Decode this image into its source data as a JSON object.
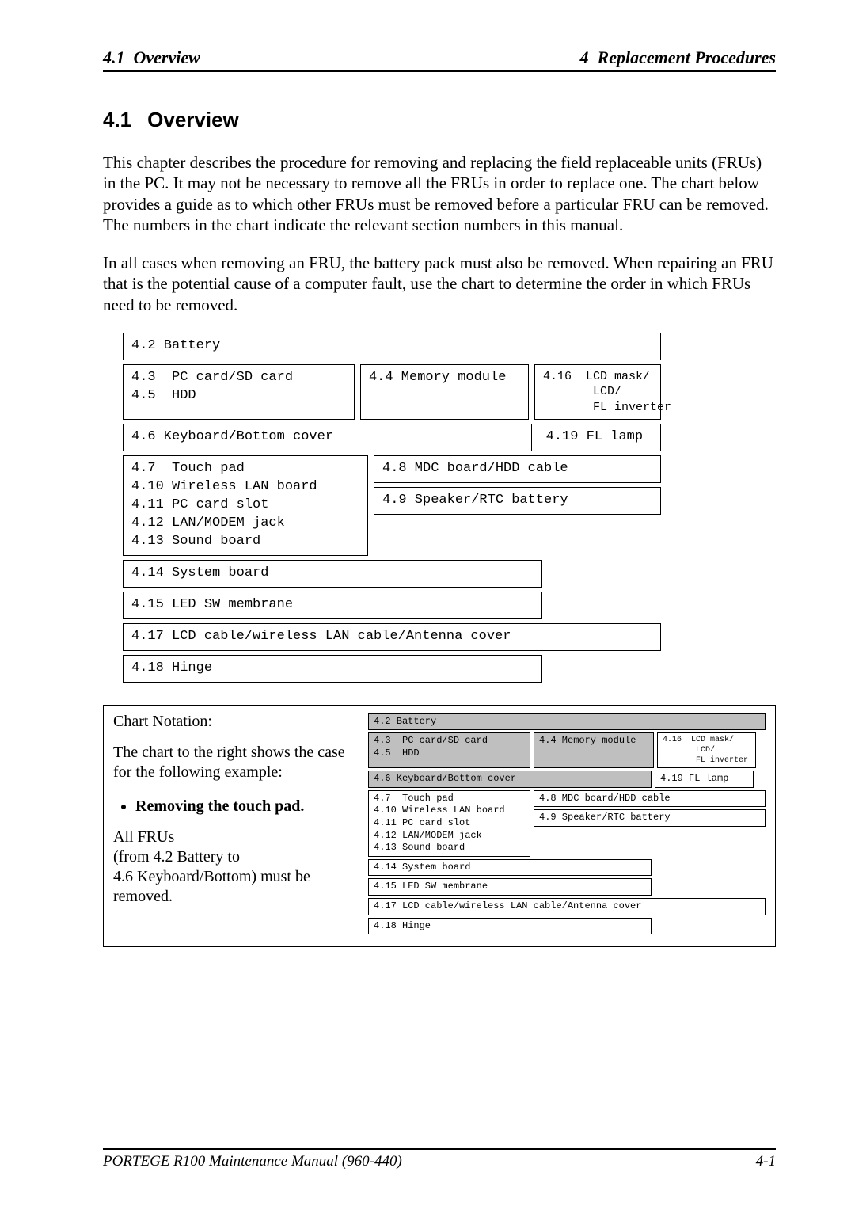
{
  "header": {
    "left_num": "4.1",
    "left_title": "Overview",
    "right_num": "4",
    "right_title": "Replacement Procedures"
  },
  "section": {
    "number": "4.1",
    "title": "Overview"
  },
  "para1": "This chapter describes the procedure for removing and replacing the field replaceable units (FRUs) in the PC. It may not be necessary to remove all the FRUs in order to replace one.  The chart below provides a guide as to which other FRUs must be removed before a particular FRU can be removed. The numbers in the chart indicate the relevant section numbers in this manual.",
  "para2": "In all cases when removing an FRU, the battery pack must also be removed. When repairing an FRU that is the potential cause of a computer fault, use the chart to determine the order in which FRUs need to be removed.",
  "chart": {
    "r1": "4.2  Battery",
    "r2a": "4.3  PC card/SD card\n4.5  HDD",
    "r2b": "4.4 Memory module",
    "r2c": "4.16  LCD mask/\n       LCD/\n       FL inverter",
    "r3a": "4.6  Keyboard/Bottom cover",
    "r3b": "4.19  FL lamp",
    "r4a": "4.7  Touch pad\n4.10 Wireless LAN board\n4.11 PC card slot\n4.12 LAN/MODEM jack\n4.13 Sound board",
    "r4b1": "4.8 MDC board/HDD cable",
    "r4b2": "4.9 Speaker/RTC battery",
    "r5": "4.14 System board",
    "r6": "4.15 LED SW membrane",
    "r7": "4.17 LCD cable/wireless LAN cable/Antenna cover",
    "r8": "4.18 Hinge"
  },
  "notation": {
    "title": "Chart Notation:",
    "para1": "The chart to the right shows the case for the following example:",
    "bullet": "Removing the touch pad.",
    "para2": "All FRUs\n(from 4.2 Battery to\n4.6 Keyboard/Bottom) must be removed."
  },
  "footer": {
    "left": "PORTEGE R100 Maintenance Manual (960-440)",
    "right": "4-1"
  }
}
